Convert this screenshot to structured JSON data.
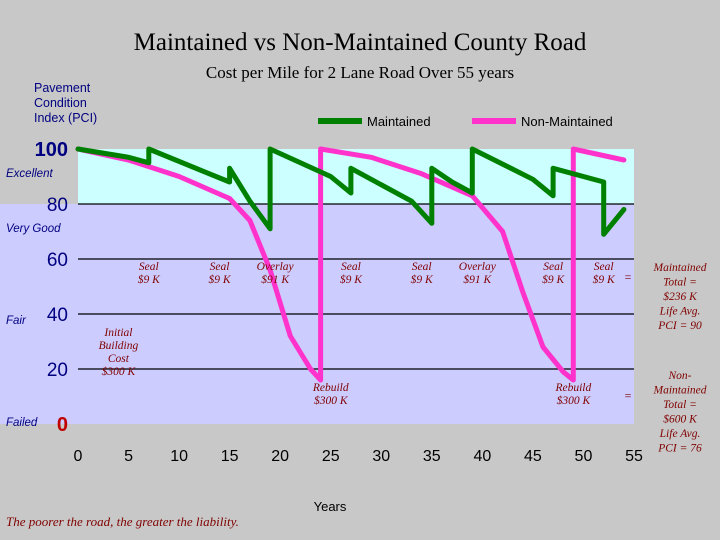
{
  "chart_data": {
    "type": "line",
    "title": "Maintained vs Non-Maintained County Road",
    "subtitle": "Cost per Mile for 2 Lane Road Over 55 years",
    "ylabel": "Pavement Condition Index (PCI)",
    "xlabel": "Years",
    "xlim": [
      0,
      55
    ],
    "ylim": [
      0,
      100
    ],
    "x_ticks": [
      "0",
      "5",
      "10",
      "15",
      "20",
      "25",
      "30",
      "35",
      "40",
      "45",
      "50",
      "55"
    ],
    "y_ticks": [
      "0",
      "20",
      "40",
      "60",
      "80",
      "100"
    ],
    "bands": [
      {
        "label": "Excellent",
        "from": 80,
        "to": 100,
        "color": "#ccffff"
      },
      {
        "label": "Very Good",
        "from": 0,
        "to": 80,
        "color": "#ccccff"
      },
      {
        "label": "Fair",
        "from": 0,
        "to": 0,
        "color": ""
      },
      {
        "label": "Failed",
        "from": 0,
        "to": 0,
        "color": ""
      }
    ],
    "legend": {
      "position": "top-right"
    },
    "series": [
      {
        "name": "Maintained",
        "color": "#008000",
        "points": [
          [
            0,
            100
          ],
          [
            5,
            97
          ],
          [
            7,
            95
          ],
          [
            7,
            100
          ],
          [
            13,
            91
          ],
          [
            15,
            88
          ],
          [
            15,
            93
          ],
          [
            17,
            81
          ],
          [
            19,
            71
          ],
          [
            19,
            100
          ],
          [
            25,
            90
          ],
          [
            27,
            84
          ],
          [
            27,
            93
          ],
          [
            33,
            81
          ],
          [
            35,
            73
          ],
          [
            35,
            93
          ],
          [
            37,
            88
          ],
          [
            39,
            84
          ],
          [
            39,
            100
          ],
          [
            45,
            89
          ],
          [
            47,
            83
          ],
          [
            47,
            93
          ],
          [
            52,
            88
          ],
          [
            52,
            69
          ],
          [
            54,
            78
          ]
        ]
      },
      {
        "name": "Non-Maintained",
        "color": "#ff33cc",
        "points": [
          [
            0,
            100
          ],
          [
            5,
            96
          ],
          [
            10,
            90
          ],
          [
            15,
            82
          ],
          [
            17,
            74
          ],
          [
            19,
            56
          ],
          [
            21,
            32
          ],
          [
            23,
            20
          ],
          [
            24,
            16
          ],
          [
            24,
            100
          ],
          [
            29,
            97
          ],
          [
            34,
            91
          ],
          [
            39,
            83
          ],
          [
            42,
            70
          ],
          [
            44,
            48
          ],
          [
            46,
            28
          ],
          [
            48,
            19
          ],
          [
            49,
            16
          ],
          [
            49,
            100
          ],
          [
            54,
            96
          ]
        ]
      }
    ],
    "annotations": [
      {
        "x": 7,
        "y": 56,
        "text": [
          "Seal",
          "$9 K"
        ]
      },
      {
        "x": 14,
        "y": 56,
        "text": [
          "Seal",
          "$9 K"
        ]
      },
      {
        "x": 19.5,
        "y": 56,
        "text": [
          "Overlay",
          "$91 K"
        ]
      },
      {
        "x": 27,
        "y": 56,
        "text": [
          "Seal",
          "$9 K"
        ]
      },
      {
        "x": 34,
        "y": 56,
        "text": [
          "Seal",
          "$9 K"
        ]
      },
      {
        "x": 39.5,
        "y": 56,
        "text": [
          "Overlay",
          "$91 K"
        ]
      },
      {
        "x": 47,
        "y": 56,
        "text": [
          "Seal",
          "$9 K"
        ]
      },
      {
        "x": 52,
        "y": 56,
        "text": [
          "Seal",
          "$9 K"
        ]
      },
      {
        "x": 4,
        "y": 32,
        "text": [
          "Initial",
          "Building",
          "Cost",
          "$300 K"
        ]
      },
      {
        "x": 25,
        "y": 12,
        "text": [
          "Rebuild",
          "$300 K"
        ]
      },
      {
        "x": 49,
        "y": 12,
        "text": [
          "Rebuild",
          "$300 K"
        ]
      }
    ],
    "summaries": [
      {
        "text": [
          "Maintained",
          "Total =",
          "$236 K",
          "Life Avg.",
          "PCI = 90"
        ]
      },
      {
        "text": [
          "Non-",
          "Maintained",
          "Total =",
          "$600 K",
          "Life Avg.",
          "PCI = 76"
        ]
      }
    ],
    "equals_marks": [
      "=",
      "="
    ],
    "footnote": "The poorer the road, the greater the liability."
  }
}
